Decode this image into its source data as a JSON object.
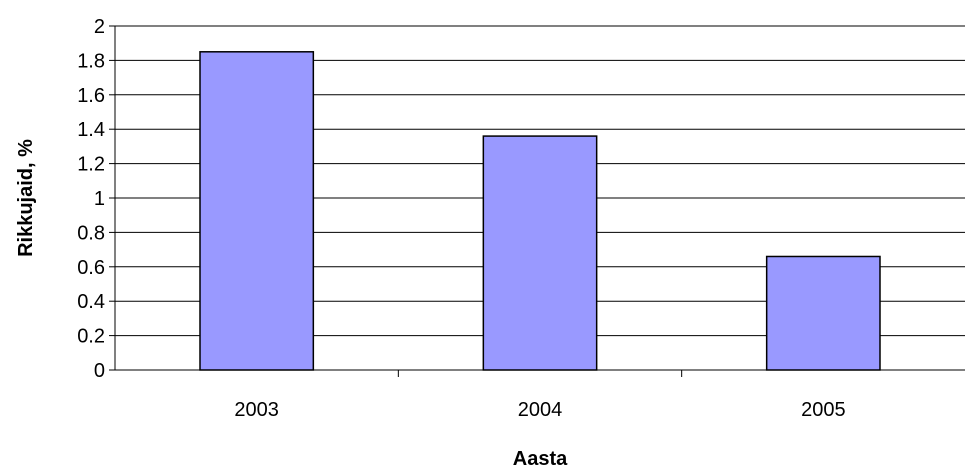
{
  "chart_data": {
    "type": "bar",
    "categories": [
      "2003",
      "2004",
      "2005"
    ],
    "values": [
      1.85,
      1.36,
      0.66
    ],
    "title": "",
    "xlabel": "Aasta",
    "ylabel": "Rikkujaid, %",
    "ylim": [
      0,
      2
    ],
    "yticks": [
      "0",
      "0.2",
      "0.4",
      "0.6",
      "0.8",
      "1",
      "1.2",
      "1.4",
      "1.6",
      "1.8",
      "2"
    ],
    "grid": true,
    "legend": "none",
    "colors": {
      "bar_fill": "#9999ff",
      "bar_stroke": "#000000",
      "grid": "#000000"
    }
  }
}
